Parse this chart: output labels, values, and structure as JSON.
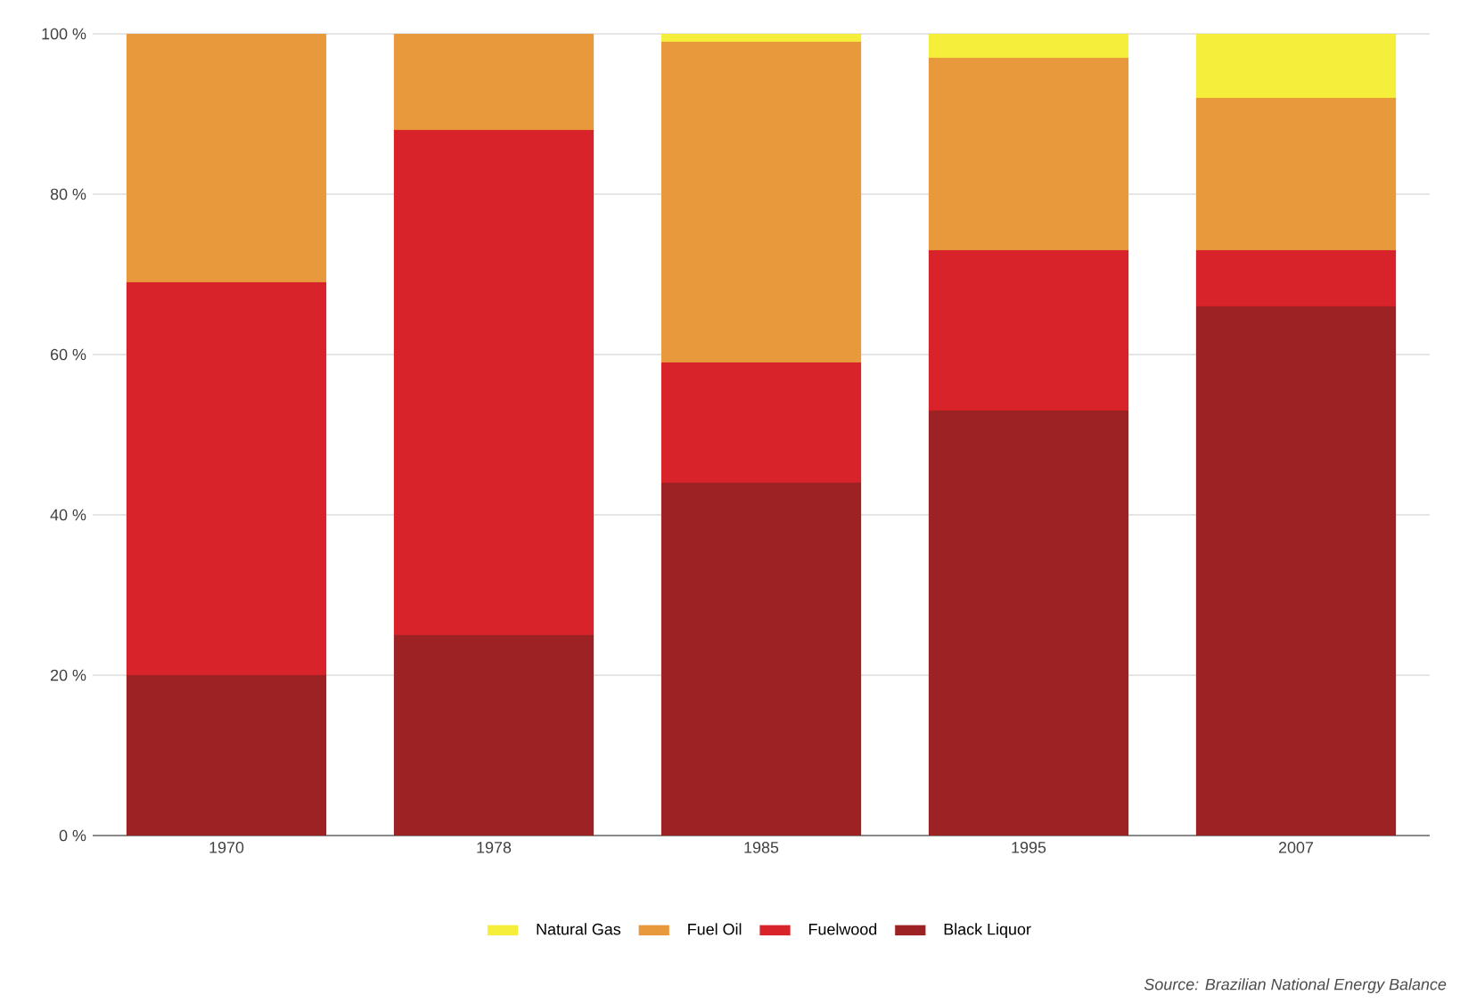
{
  "chart_data": {
    "type": "bar",
    "stacked": true,
    "categories": [
      "1970",
      "1978",
      "1985",
      "1995",
      "2007"
    ],
    "series": [
      {
        "name": "Black Liquor",
        "color": "#9c2224",
        "values": [
          20,
          25,
          44,
          53,
          66
        ]
      },
      {
        "name": "Fuelwood",
        "color": "#d9232a",
        "values": [
          49,
          63,
          15,
          20,
          7
        ]
      },
      {
        "name": "Fuel Oil",
        "color": "#e8993c",
        "values": [
          31,
          12,
          40,
          24,
          19
        ]
      },
      {
        "name": "Natural Gas",
        "color": "#f5ee3a",
        "values": [
          0,
          0,
          1,
          3,
          8
        ]
      }
    ],
    "ylim": [
      0,
      100
    ],
    "yticks": [
      {
        "value": 0,
        "label": "0 %"
      },
      {
        "value": 20,
        "label": "20 %"
      },
      {
        "value": 40,
        "label": "40 %"
      },
      {
        "value": 60,
        "label": "60 %"
      },
      {
        "value": 80,
        "label": "80 %"
      },
      {
        "value": 100,
        "label": "100 %"
      }
    ],
    "grid": "y",
    "legend": "bottom",
    "annotations": [
      "Source: Brazilian National Energy Balance"
    ]
  }
}
